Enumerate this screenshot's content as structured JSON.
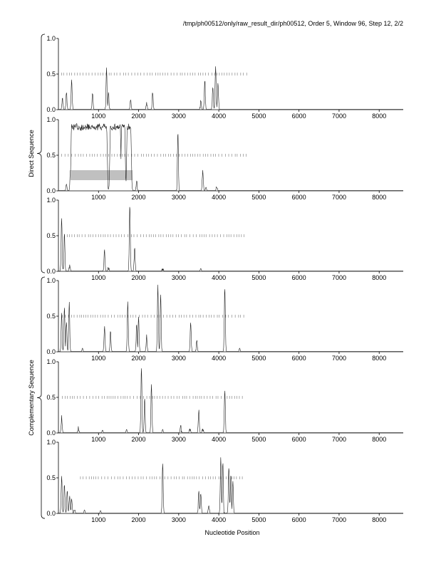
{
  "header": {
    "title": "/tmp/ph00512/only/raw_result_dir/ph00512, Order 5, Window 96, Step 12, 2/2"
  },
  "labels": {
    "xlabel": "Nucleotide Position",
    "group_direct": "Direct Sequence",
    "group_complementary": "Complementary Sequence"
  },
  "chart_data": {
    "type": "line",
    "title": "/tmp/ph00512/only/raw_result_dir/ph00512, Order 5, Window 96, Step 12, 2/2",
    "xlabel": "Nucleotide Position",
    "ylabel": "",
    "xlim": [
      0,
      8600
    ],
    "ylim": [
      0,
      1
    ],
    "x_ticks": [
      "1000",
      "2000",
      "3000",
      "4000",
      "5000",
      "6000",
      "7000",
      "8000"
    ],
    "y_ticks": [
      "0.0",
      "0.5",
      "1.0"
    ],
    "grid": false,
    "panels": [
      {
        "group": "Direct Sequence",
        "ticks_range": [
          80,
          4700
        ],
        "peaks": [
          [
            100,
            0.2
          ],
          [
            200,
            0.28
          ],
          [
            330,
            0.45
          ],
          [
            850,
            0.25
          ],
          [
            1200,
            0.6
          ],
          [
            1250,
            0.3
          ],
          [
            1800,
            0.15
          ],
          [
            2200,
            0.12
          ],
          [
            2350,
            0.28
          ],
          [
            3550,
            0.15
          ],
          [
            3650,
            0.45
          ],
          [
            3850,
            0.35
          ],
          [
            3920,
            0.65
          ],
          [
            3980,
            0.4
          ]
        ]
      },
      {
        "group": "Direct Sequence",
        "ticks_range": [
          80,
          4700
        ],
        "shaded_region": [
          300,
          1850,
          0.15,
          0.29
        ],
        "peaks": [
          [
            200,
            0.1
          ],
          [
            300,
            0.3
          ],
          [
            1200,
            0.5
          ],
          [
            1550,
            0.15
          ],
          [
            1950,
            0.18
          ],
          [
            2980,
            0.85
          ],
          [
            3600,
            0.33
          ],
          [
            3680,
            0.05
          ],
          [
            3950,
            0.1
          ]
        ],
        "plateaus": [
          [
            330,
            1200,
            0.95
          ],
          [
            1300,
            1540,
            0.95
          ],
          [
            1580,
            1650,
            0.95
          ],
          [
            1720,
            1800,
            0.95
          ]
        ]
      },
      {
        "group": "Direct Sequence",
        "ticks_range": [
          150,
          4700
        ],
        "peaks": [
          [
            80,
            0.8
          ],
          [
            150,
            0.55
          ],
          [
            280,
            0.12
          ],
          [
            1150,
            0.32
          ],
          [
            1250,
            0.08
          ],
          [
            1780,
            0.95
          ],
          [
            1900,
            0.35
          ],
          [
            2600,
            0.08
          ],
          [
            3550,
            0.04
          ]
        ]
      },
      {
        "group": "Complementary Sequence",
        "ticks_range": [
          100,
          4650
        ],
        "peaks": [
          [
            80,
            0.55
          ],
          [
            150,
            0.65
          ],
          [
            200,
            0.45
          ],
          [
            270,
            0.72
          ],
          [
            600,
            0.05
          ],
          [
            1150,
            0.38
          ],
          [
            1300,
            0.3
          ],
          [
            1730,
            0.72
          ],
          [
            1950,
            0.4
          ],
          [
            2000,
            0.5
          ],
          [
            2200,
            0.25
          ],
          [
            2480,
            0.95
          ],
          [
            2550,
            0.85
          ],
          [
            3300,
            0.45
          ],
          [
            3450,
            0.2
          ],
          [
            4150,
            0.92
          ],
          [
            4520,
            0.05
          ]
        ]
      },
      {
        "group": "Complementary Sequence",
        "ticks_range": [
          100,
          4600
        ],
        "peaks": [
          [
            80,
            0.25
          ],
          [
            500,
            0.1
          ],
          [
            1100,
            0.04
          ],
          [
            1700,
            0.05
          ],
          [
            2070,
            0.95
          ],
          [
            2150,
            0.5
          ],
          [
            2320,
            0.72
          ],
          [
            2600,
            0.05
          ],
          [
            3050,
            0.12
          ],
          [
            3280,
            0.1
          ],
          [
            3500,
            0.35
          ],
          [
            3600,
            0.1
          ],
          [
            4150,
            0.65
          ]
        ]
      },
      {
        "group": "Complementary Sequence",
        "ticks_range": [
          550,
          4650
        ],
        "peaks": [
          [
            80,
            0.55
          ],
          [
            150,
            0.45
          ],
          [
            220,
            0.35
          ],
          [
            280,
            0.3
          ],
          [
            330,
            0.25
          ],
          [
            400,
            0.1
          ],
          [
            650,
            0.05
          ],
          [
            1050,
            0.04
          ],
          [
            2600,
            0.75
          ],
          [
            3500,
            0.35
          ],
          [
            3550,
            0.3
          ],
          [
            3750,
            0.15
          ],
          [
            4050,
            0.8
          ],
          [
            4100,
            0.75
          ],
          [
            4250,
            0.7
          ],
          [
            4300,
            0.6
          ],
          [
            4350,
            0.5
          ]
        ]
      }
    ]
  }
}
